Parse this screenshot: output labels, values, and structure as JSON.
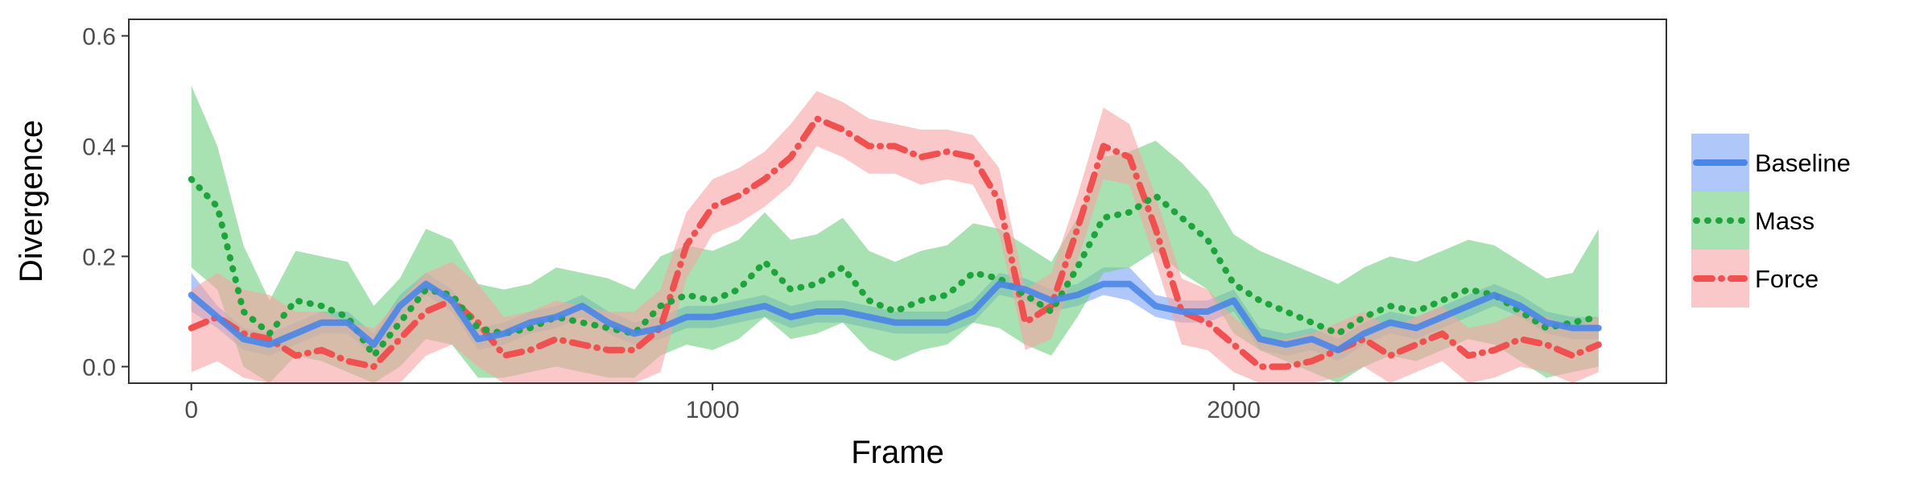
{
  "chart_data": {
    "type": "line",
    "xlabel": "Frame",
    "ylabel": "Divergence",
    "xlim": [
      -120,
      2830
    ],
    "ylim": [
      -0.03,
      0.63
    ],
    "x_ticks": [
      {
        "value": 0,
        "label": "0"
      },
      {
        "value": 1000,
        "label": "1000"
      },
      {
        "value": 2000,
        "label": "2000"
      }
    ],
    "y_ticks": [
      {
        "value": 0.0,
        "label": "0.0"
      },
      {
        "value": 0.2,
        "label": "0.2"
      },
      {
        "value": 0.4,
        "label": "0.4"
      },
      {
        "value": 0.6,
        "label": "0.6"
      }
    ],
    "grid": false,
    "legend_position": "right",
    "x": [
      0,
      50,
      100,
      150,
      200,
      250,
      300,
      350,
      400,
      450,
      500,
      550,
      600,
      650,
      700,
      750,
      800,
      850,
      900,
      950,
      1000,
      1050,
      1100,
      1150,
      1200,
      1250,
      1300,
      1350,
      1400,
      1450,
      1500,
      1550,
      1600,
      1650,
      1700,
      1750,
      1800,
      1850,
      1900,
      1950,
      2000,
      2050,
      2100,
      2150,
      2200,
      2250,
      2300,
      2350,
      2400,
      2450,
      2500,
      2550,
      2600,
      2650,
      2700
    ],
    "series": [
      {
        "name": "Baseline",
        "color": "#4a86e8",
        "band_color": "#7ba3f5",
        "line_style": "solid",
        "y": [
          0.13,
          0.09,
          0.05,
          0.04,
          0.06,
          0.08,
          0.08,
          0.04,
          0.11,
          0.15,
          0.12,
          0.05,
          0.06,
          0.08,
          0.09,
          0.11,
          0.08,
          0.06,
          0.07,
          0.09,
          0.09,
          0.1,
          0.11,
          0.09,
          0.1,
          0.1,
          0.09,
          0.08,
          0.08,
          0.08,
          0.1,
          0.15,
          0.14,
          0.12,
          0.13,
          0.15,
          0.15,
          0.11,
          0.1,
          0.1,
          0.12,
          0.05,
          0.04,
          0.05,
          0.03,
          0.06,
          0.08,
          0.07,
          0.09,
          0.11,
          0.13,
          0.11,
          0.08,
          0.07,
          0.07
        ],
        "lower": [
          0.1,
          0.07,
          0.03,
          0.02,
          0.04,
          0.06,
          0.06,
          0.02,
          0.09,
          0.13,
          0.1,
          0.03,
          0.04,
          0.06,
          0.07,
          0.09,
          0.06,
          0.04,
          0.05,
          0.07,
          0.07,
          0.08,
          0.09,
          0.07,
          0.08,
          0.08,
          0.07,
          0.06,
          0.06,
          0.06,
          0.08,
          0.13,
          0.12,
          0.1,
          0.11,
          0.13,
          0.12,
          0.09,
          0.08,
          0.08,
          0.1,
          0.03,
          0.02,
          0.03,
          0.01,
          0.04,
          0.06,
          0.05,
          0.07,
          0.09,
          0.11,
          0.09,
          0.06,
          0.05,
          0.05
        ],
        "upper": [
          0.17,
          0.11,
          0.07,
          0.06,
          0.08,
          0.1,
          0.1,
          0.06,
          0.13,
          0.17,
          0.14,
          0.07,
          0.08,
          0.1,
          0.11,
          0.13,
          0.1,
          0.08,
          0.09,
          0.11,
          0.11,
          0.12,
          0.13,
          0.11,
          0.12,
          0.12,
          0.11,
          0.1,
          0.1,
          0.1,
          0.12,
          0.17,
          0.16,
          0.14,
          0.15,
          0.18,
          0.18,
          0.13,
          0.12,
          0.12,
          0.14,
          0.07,
          0.06,
          0.07,
          0.05,
          0.08,
          0.1,
          0.09,
          0.11,
          0.13,
          0.15,
          0.13,
          0.1,
          0.09,
          0.09
        ]
      },
      {
        "name": "Mass",
        "color": "#1ea43c",
        "band_color": "#6fcf7f",
        "line_style": "dotted",
        "y": [
          0.34,
          0.29,
          0.1,
          0.06,
          0.12,
          0.11,
          0.09,
          0.02,
          0.08,
          0.14,
          0.13,
          0.07,
          0.06,
          0.07,
          0.09,
          0.08,
          0.07,
          0.06,
          0.11,
          0.13,
          0.12,
          0.14,
          0.19,
          0.14,
          0.15,
          0.18,
          0.12,
          0.1,
          0.12,
          0.13,
          0.17,
          0.16,
          0.13,
          0.1,
          0.18,
          0.27,
          0.28,
          0.31,
          0.27,
          0.23,
          0.15,
          0.12,
          0.1,
          0.08,
          0.06,
          0.09,
          0.11,
          0.1,
          0.12,
          0.14,
          0.13,
          0.1,
          0.07,
          0.08,
          0.09
        ],
        "lower": [
          0.18,
          0.14,
          0.0,
          -0.03,
          0.02,
          0.01,
          -0.01,
          -0.03,
          0.0,
          0.05,
          0.04,
          -0.02,
          -0.02,
          -0.01,
          0.0,
          -0.01,
          -0.02,
          -0.02,
          0.02,
          0.04,
          0.03,
          0.05,
          0.09,
          0.05,
          0.06,
          0.08,
          0.03,
          0.01,
          0.03,
          0.04,
          0.08,
          0.07,
          0.04,
          0.02,
          0.09,
          0.17,
          0.18,
          0.21,
          0.17,
          0.14,
          0.06,
          0.03,
          0.01,
          -0.01,
          -0.03,
          0.0,
          0.02,
          0.01,
          0.03,
          0.05,
          0.04,
          0.01,
          -0.02,
          -0.01,
          0.0
        ],
        "upper": [
          0.51,
          0.4,
          0.22,
          0.12,
          0.21,
          0.2,
          0.19,
          0.11,
          0.16,
          0.25,
          0.23,
          0.15,
          0.14,
          0.15,
          0.18,
          0.17,
          0.16,
          0.14,
          0.2,
          0.22,
          0.21,
          0.23,
          0.28,
          0.23,
          0.24,
          0.27,
          0.21,
          0.19,
          0.21,
          0.22,
          0.26,
          0.25,
          0.22,
          0.19,
          0.27,
          0.38,
          0.39,
          0.41,
          0.37,
          0.32,
          0.24,
          0.21,
          0.19,
          0.17,
          0.15,
          0.18,
          0.2,
          0.19,
          0.21,
          0.23,
          0.22,
          0.19,
          0.16,
          0.17,
          0.25
        ]
      },
      {
        "name": "Force",
        "color": "#f05050",
        "band_color": "#f7a3a3",
        "line_style": "dashdot",
        "y": [
          0.07,
          0.09,
          0.06,
          0.05,
          0.02,
          0.03,
          0.01,
          0.0,
          0.05,
          0.1,
          0.12,
          0.08,
          0.02,
          0.03,
          0.05,
          0.04,
          0.03,
          0.03,
          0.07,
          0.22,
          0.29,
          0.31,
          0.34,
          0.38,
          0.45,
          0.43,
          0.4,
          0.4,
          0.38,
          0.39,
          0.38,
          0.3,
          0.08,
          0.11,
          0.25,
          0.4,
          0.38,
          0.25,
          0.1,
          0.08,
          0.04,
          0.0,
          0.0,
          0.01,
          0.03,
          0.05,
          0.02,
          0.04,
          0.06,
          0.02,
          0.03,
          0.05,
          0.04,
          0.02,
          0.04
        ],
        "lower": [
          -0.01,
          0.01,
          -0.02,
          -0.03,
          -0.03,
          -0.03,
          -0.03,
          -0.03,
          -0.03,
          0.02,
          0.04,
          0.0,
          -0.03,
          -0.03,
          -0.03,
          -0.03,
          -0.03,
          -0.03,
          -0.01,
          0.16,
          0.24,
          0.26,
          0.29,
          0.33,
          0.4,
          0.38,
          0.35,
          0.35,
          0.33,
          0.34,
          0.33,
          0.24,
          0.03,
          0.05,
          0.19,
          0.34,
          0.33,
          0.19,
          0.04,
          0.03,
          -0.01,
          -0.03,
          -0.03,
          -0.03,
          -0.02,
          0.0,
          -0.03,
          -0.01,
          0.01,
          -0.03,
          -0.02,
          0.0,
          -0.01,
          -0.03,
          -0.01
        ],
        "upper": [
          0.14,
          0.17,
          0.14,
          0.13,
          0.1,
          0.1,
          0.08,
          0.07,
          0.12,
          0.17,
          0.19,
          0.15,
          0.09,
          0.1,
          0.12,
          0.11,
          0.1,
          0.1,
          0.14,
          0.28,
          0.34,
          0.36,
          0.39,
          0.44,
          0.5,
          0.48,
          0.45,
          0.44,
          0.43,
          0.43,
          0.42,
          0.36,
          0.14,
          0.17,
          0.31,
          0.47,
          0.44,
          0.31,
          0.16,
          0.14,
          0.09,
          0.05,
          0.05,
          0.06,
          0.08,
          0.1,
          0.07,
          0.09,
          0.11,
          0.07,
          0.08,
          0.1,
          0.09,
          0.07,
          0.09
        ]
      }
    ]
  }
}
